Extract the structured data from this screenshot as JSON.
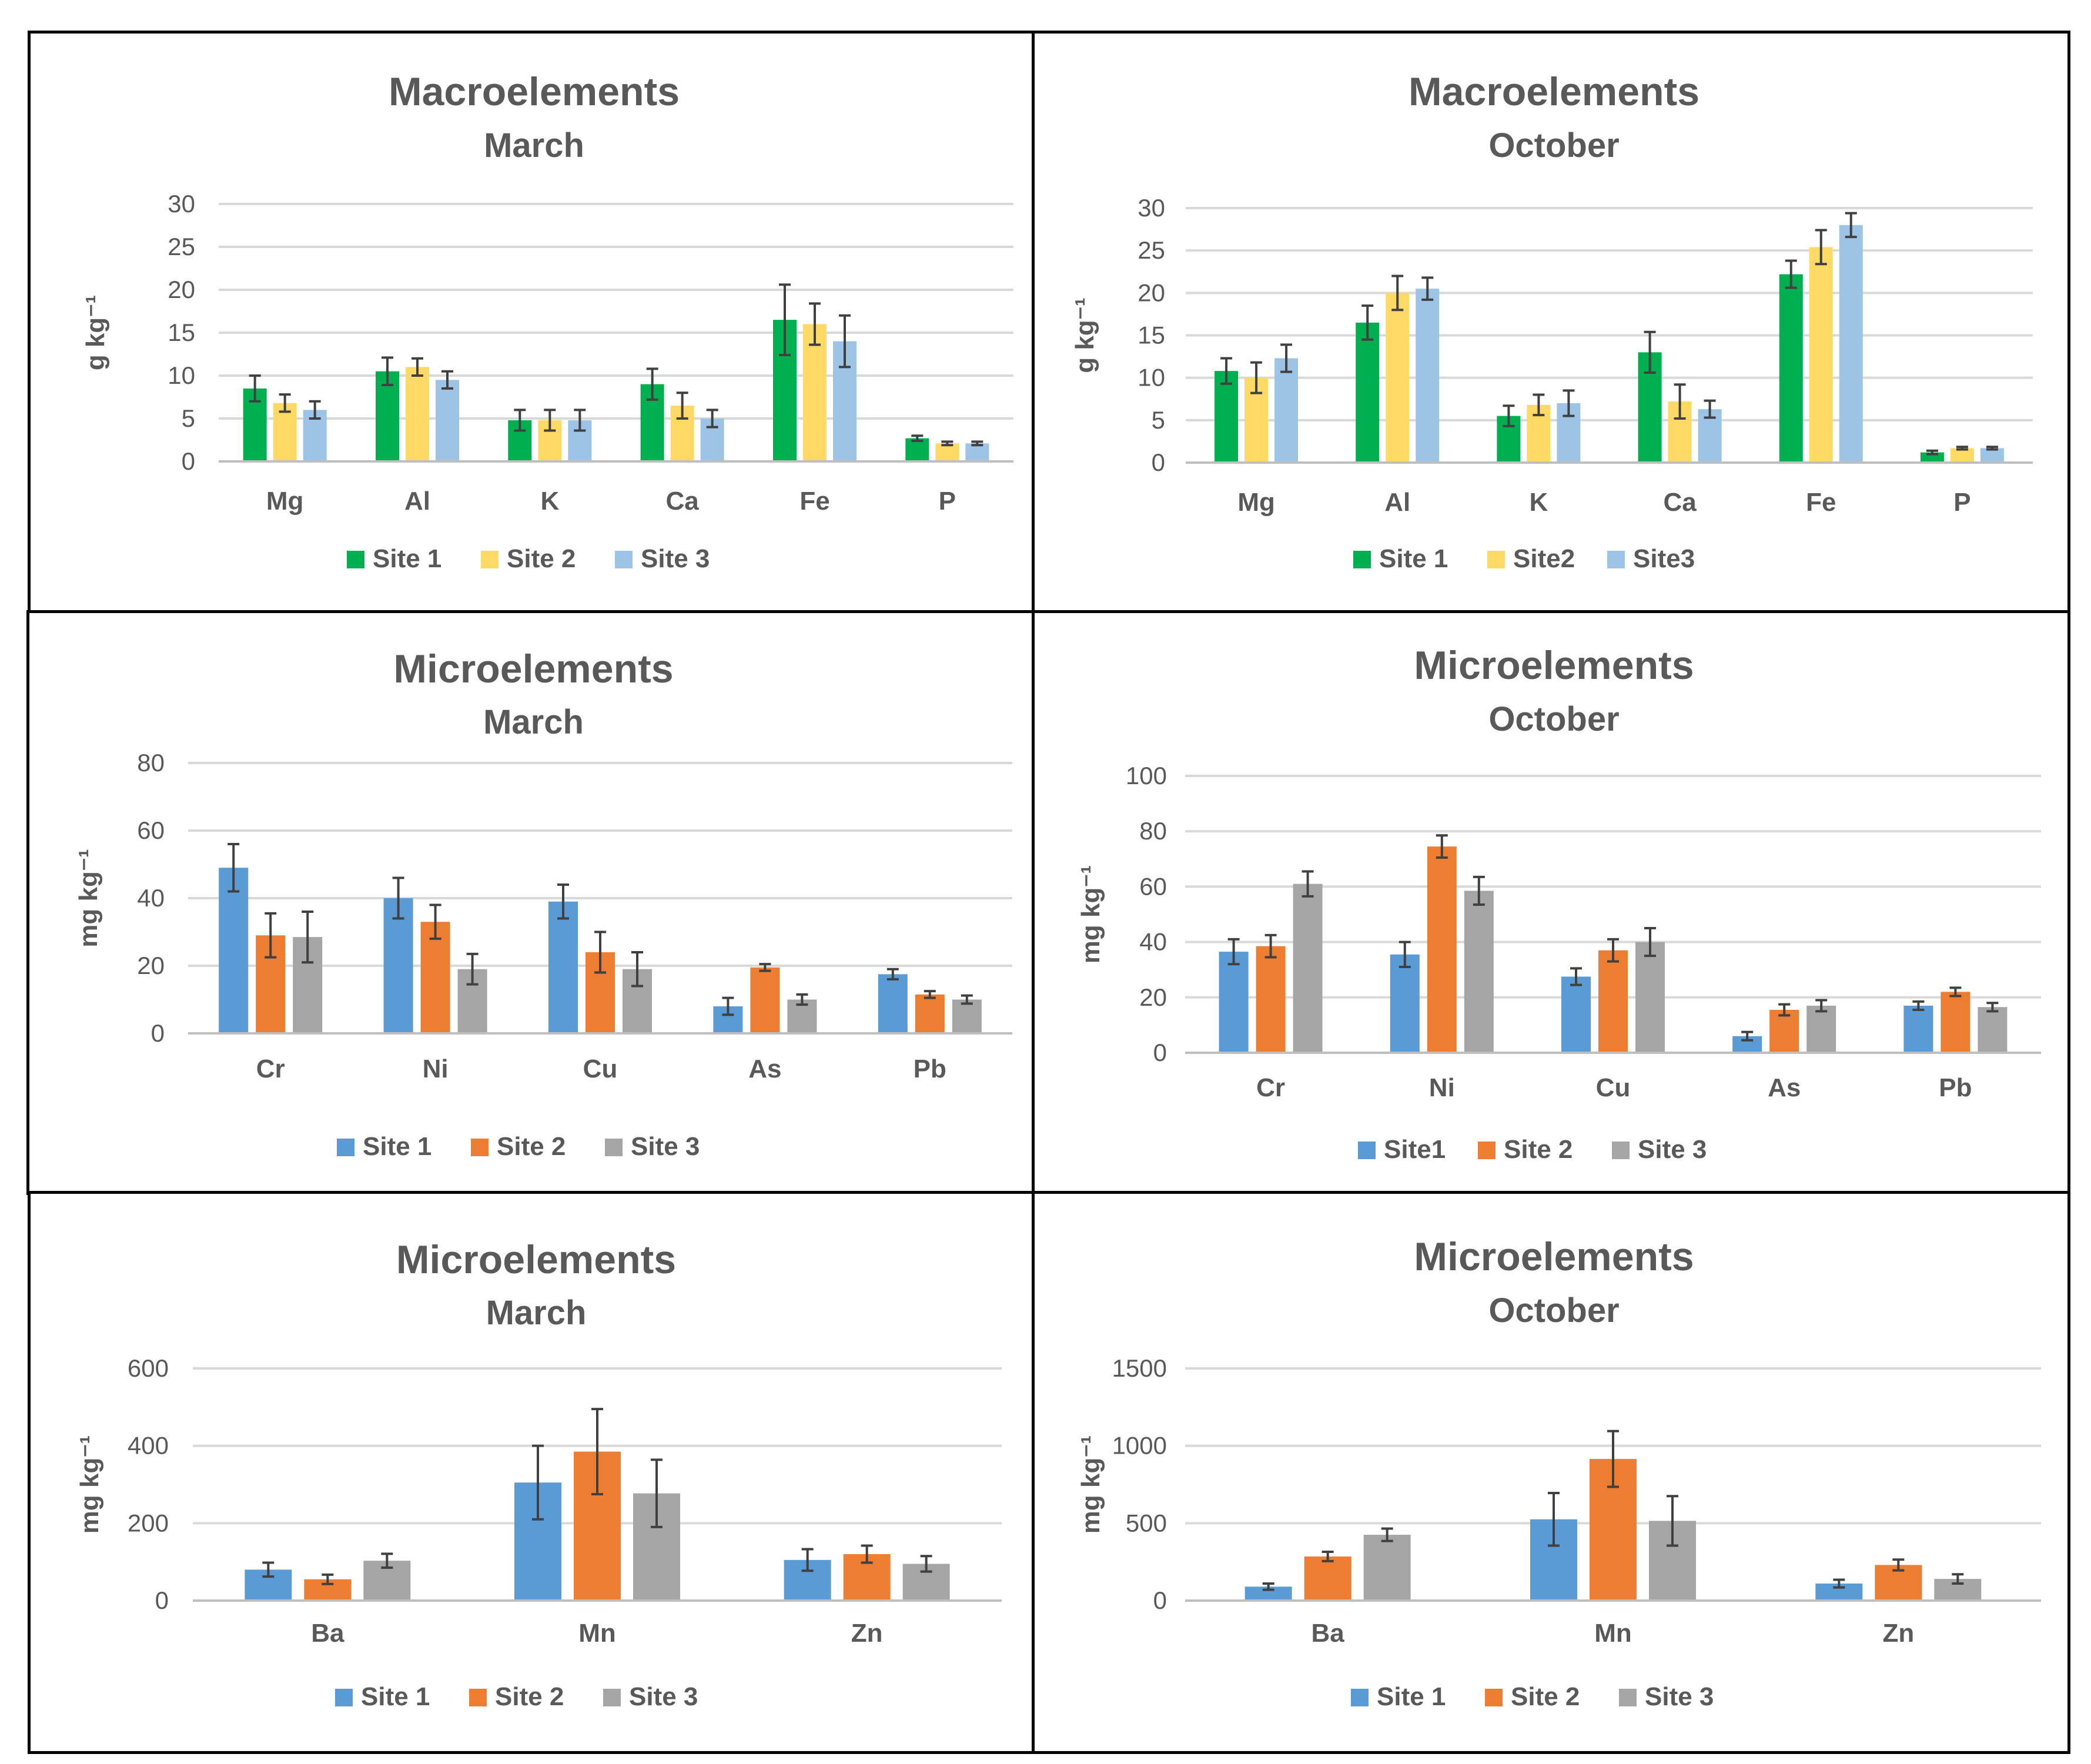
{
  "chart_data": [
    {
      "type": "bar",
      "title": "Macroelements",
      "subtitle": "March",
      "ylabel": "g kg⁻¹",
      "ylim": [
        0,
        30
      ],
      "yticks": [
        0,
        5,
        10,
        15,
        20,
        25,
        30
      ],
      "categories": [
        "Mg",
        "Al",
        "K",
        "Ca",
        "Fe",
        "P"
      ],
      "series": [
        {
          "name": "Site 1",
          "color": "#00B050",
          "values": [
            8.5,
            10.5,
            4.8,
            9.0,
            16.5,
            2.7
          ],
          "errors": [
            1.5,
            1.6,
            1.2,
            1.8,
            4.1,
            0.3
          ]
        },
        {
          "name": "Site 2",
          "color": "#FFD966",
          "values": [
            6.8,
            11.0,
            4.8,
            6.5,
            16.0,
            2.1
          ],
          "errors": [
            1.0,
            1.0,
            1.2,
            1.5,
            2.4,
            0.2
          ]
        },
        {
          "name": "Site 3",
          "color": "#9DC3E6",
          "values": [
            6.0,
            9.5,
            4.8,
            5.0,
            14.0,
            2.1
          ],
          "errors": [
            1.0,
            1.0,
            1.2,
            1.0,
            3.0,
            0.2
          ]
        }
      ]
    },
    {
      "type": "bar",
      "title": "Macroelements",
      "subtitle": "October",
      "ylabel": "g kg⁻¹",
      "ylim": [
        0,
        30
      ],
      "yticks": [
        0,
        5,
        10,
        15,
        20,
        25,
        30
      ],
      "categories": [
        "Mg",
        "Al",
        "K",
        "Ca",
        "Fe",
        "P"
      ],
      "series": [
        {
          "name": "Site 1",
          "color": "#00B050",
          "values": [
            10.8,
            16.5,
            5.5,
            13.0,
            22.2,
            1.2
          ],
          "errors": [
            1.5,
            2.0,
            1.2,
            2.4,
            1.6,
            0.2
          ]
        },
        {
          "name": "Site2",
          "color": "#FFD966",
          "values": [
            10.0,
            20.0,
            6.8,
            7.2,
            25.4,
            1.7
          ],
          "errors": [
            1.8,
            2.0,
            1.2,
            2.0,
            2.0,
            0.15
          ]
        },
        {
          "name": "Site3",
          "color": "#9DC3E6",
          "values": [
            12.3,
            20.5,
            7.0,
            6.3,
            28.0,
            1.7
          ],
          "errors": [
            1.6,
            1.3,
            1.5,
            1.0,
            1.4,
            0.15
          ]
        }
      ]
    },
    {
      "type": "bar",
      "title": "Microelements",
      "subtitle": "March",
      "ylabel": "mg kg⁻¹",
      "ylim": [
        0,
        80
      ],
      "yticks": [
        0,
        20,
        40,
        60,
        80
      ],
      "categories": [
        "Cr",
        "Ni",
        "Cu",
        "As",
        "Pb"
      ],
      "series": [
        {
          "name": "Site 1",
          "color": "#5B9BD5",
          "values": [
            49,
            40,
            39,
            8,
            17.5
          ],
          "errors": [
            7,
            6,
            5,
            2.5,
            1.5
          ]
        },
        {
          "name": "Site 2",
          "color": "#ED7D31",
          "values": [
            29,
            33,
            24,
            19.5,
            11.5
          ],
          "errors": [
            6.5,
            5,
            6,
            1,
            1
          ]
        },
        {
          "name": "Site 3",
          "color": "#A5A5A5",
          "values": [
            28.5,
            19,
            19,
            10,
            10
          ],
          "errors": [
            7.5,
            4.5,
            5,
            1.5,
            1.2
          ]
        }
      ]
    },
    {
      "type": "bar",
      "title": "Microelements",
      "subtitle": "October",
      "ylabel": "mg kg⁻¹",
      "ylim": [
        0,
        100
      ],
      "yticks": [
        0,
        20,
        40,
        60,
        80,
        100
      ],
      "categories": [
        "Cr",
        "Ni",
        "Cu",
        "As",
        "Pb"
      ],
      "series": [
        {
          "name": "Site1",
          "color": "#5B9BD5",
          "values": [
            36.5,
            35.5,
            27.5,
            6,
            17
          ],
          "errors": [
            4.5,
            4.5,
            3,
            1.5,
            1.5
          ]
        },
        {
          "name": "Site 2",
          "color": "#ED7D31",
          "values": [
            38.5,
            74.5,
            37,
            15.5,
            22
          ],
          "errors": [
            4,
            4,
            4,
            2,
            1.5
          ]
        },
        {
          "name": "Site 3",
          "color": "#A5A5A5",
          "values": [
            61,
            58.5,
            40,
            17,
            16.5
          ],
          "errors": [
            4.5,
            5,
            5,
            2,
            1.5
          ]
        }
      ]
    },
    {
      "type": "bar",
      "title": "Microelements",
      "subtitle": "March",
      "ylabel": "mg kg⁻¹",
      "ylim": [
        0,
        600
      ],
      "yticks": [
        0,
        200,
        400,
        600
      ],
      "categories": [
        "Ba",
        "Mn",
        "Zn"
      ],
      "series": [
        {
          "name": "Site 1",
          "color": "#5B9BD5",
          "values": [
            80,
            305,
            105
          ],
          "errors": [
            18,
            95,
            28
          ]
        },
        {
          "name": "Site 2",
          "color": "#ED7D31",
          "values": [
            55,
            385,
            120
          ],
          "errors": [
            12,
            110,
            22
          ]
        },
        {
          "name": "Site 3",
          "color": "#A5A5A5",
          "values": [
            103,
            277,
            95
          ],
          "errors": [
            18,
            87,
            20
          ]
        }
      ]
    },
    {
      "type": "bar",
      "title": "Microelements",
      "subtitle": "October",
      "ylabel": "mg kg⁻¹",
      "ylim": [
        0,
        1500
      ],
      "yticks": [
        0,
        500,
        1000,
        1500
      ],
      "categories": [
        "Ba",
        "Mn",
        "Zn"
      ],
      "series": [
        {
          "name": "Site 1",
          "color": "#5B9BD5",
          "values": [
            90,
            525,
            110
          ],
          "errors": [
            20,
            170,
            25
          ]
        },
        {
          "name": "Site 2",
          "color": "#ED7D31",
          "values": [
            285,
            915,
            230
          ],
          "errors": [
            30,
            180,
            35
          ]
        },
        {
          "name": "Site 3",
          "color": "#A5A5A5",
          "values": [
            425,
            515,
            140
          ],
          "errors": [
            40,
            160,
            30
          ]
        }
      ]
    }
  ]
}
